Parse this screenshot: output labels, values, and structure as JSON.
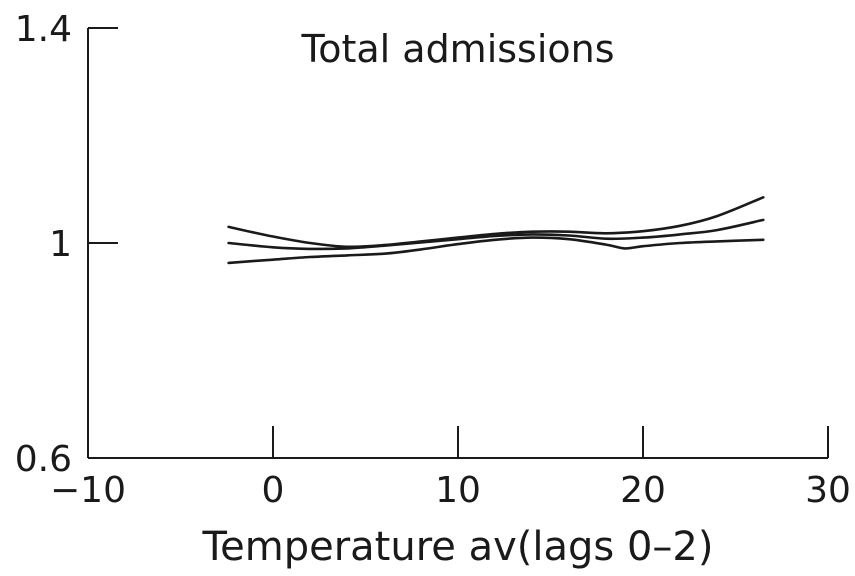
{
  "chart_data": {
    "type": "line",
    "title": "Total admissions",
    "xlabel": "Temperature av(lags 0–2)",
    "ylabel": "",
    "xlim": [
      -10,
      30
    ],
    "ylim": [
      0.6,
      1.4
    ],
    "x_ticks": [
      -10,
      0,
      10,
      20,
      30
    ],
    "x_tick_labels": [
      "−10",
      "0",
      "10",
      "20",
      "30"
    ],
    "y_ticks": [
      0.6,
      1,
      1.4
    ],
    "y_tick_labels": [
      "0.6",
      "1",
      "1.4"
    ],
    "grid": false,
    "line_color": "#1a1a1a",
    "series": [
      {
        "x": [
          -2.4,
          0,
          2,
          4,
          6,
          8,
          10,
          12,
          14,
          16,
          18,
          20,
          22,
          24,
          26.5
        ],
        "values": [
          1.03,
          1.012,
          1.0,
          0.993,
          0.996,
          1.003,
          1.01,
          1.017,
          1.021,
          1.021,
          1.018,
          1.022,
          1.032,
          1.05,
          1.085
        ]
      },
      {
        "x": [
          -2.4,
          0,
          2,
          4,
          6,
          8,
          10,
          12,
          14,
          16,
          18,
          20,
          22,
          24,
          26.5
        ],
        "values": [
          1.0,
          0.992,
          0.989,
          0.99,
          0.995,
          1.001,
          1.007,
          1.013,
          1.016,
          1.014,
          1.008,
          1.01,
          1.016,
          1.024,
          1.043
        ]
      },
      {
        "x": [
          -2.4,
          0,
          2,
          4,
          6,
          8,
          10,
          12,
          14,
          16,
          18,
          19,
          20,
          22,
          24,
          26.5
        ],
        "values": [
          0.963,
          0.969,
          0.974,
          0.977,
          0.98,
          0.988,
          0.998,
          1.006,
          1.01,
          1.007,
          0.997,
          0.99,
          0.994,
          1.0,
          1.003,
          1.006
        ]
      }
    ]
  }
}
